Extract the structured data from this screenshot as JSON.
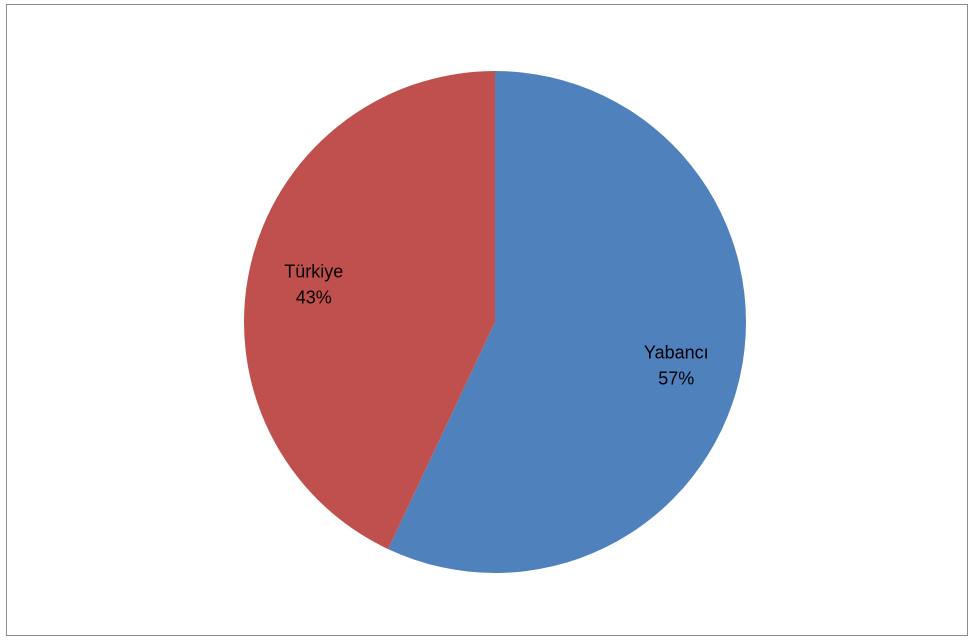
{
  "chart_data": {
    "type": "pie",
    "title": "",
    "slices": [
      {
        "label": "Yabancı",
        "value": 57,
        "value_label": "57%",
        "color": "#4F81BD"
      },
      {
        "label": "Türkiye",
        "value": 43,
        "value_label": "43%",
        "color": "#C0504D"
      }
    ],
    "start_angle": "12 o'clock",
    "direction": "clockwise",
    "legend": "none",
    "data_labels": "inside"
  }
}
